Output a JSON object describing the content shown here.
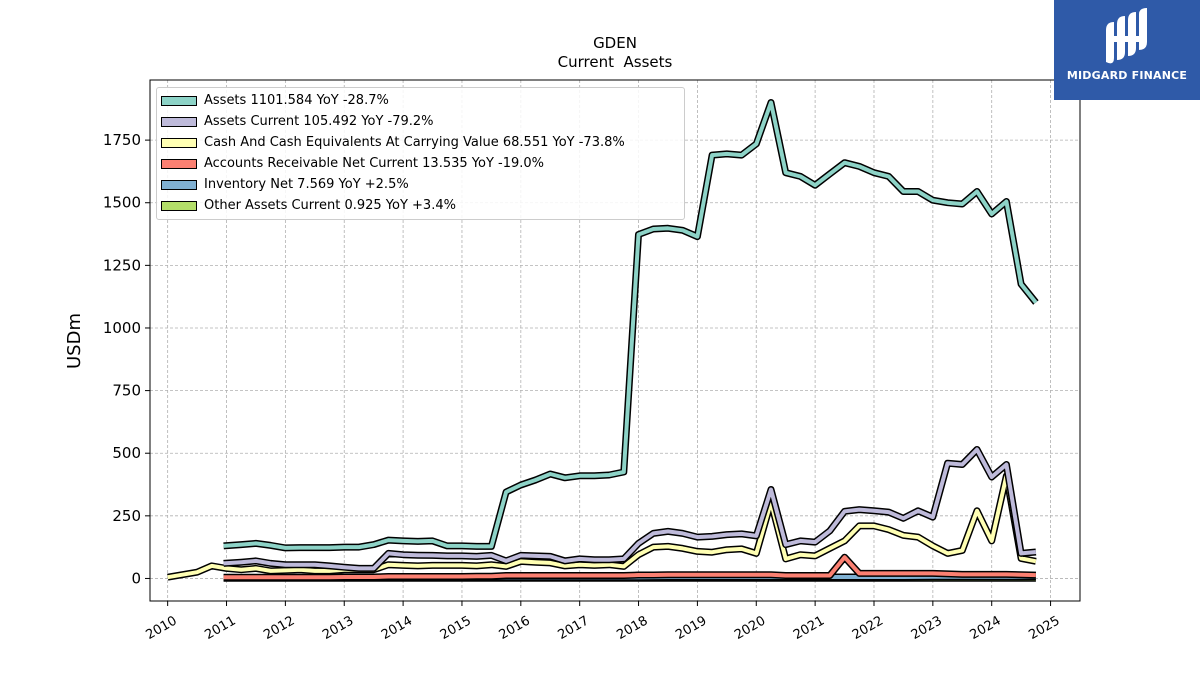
{
  "brand": {
    "name": "MIDGARD FINANCE",
    "color": "#2f5aa8"
  },
  "chart_data": {
    "type": "line",
    "title": "GDEN",
    "subtitle": "Current  Assets",
    "ylabel": "USDm",
    "xlabel": "",
    "xlim": [
      2009.7,
      2025.5
    ],
    "ylim": [
      -90,
      1990
    ],
    "yticks": [
      0,
      250,
      500,
      750,
      1000,
      1250,
      1500,
      1750
    ],
    "xticks": [
      2010,
      2011,
      2012,
      2013,
      2014,
      2015,
      2016,
      2017,
      2018,
      2019,
      2020,
      2021,
      2022,
      2023,
      2024,
      2025
    ],
    "grid": true,
    "legend_position": "top-left",
    "series": [
      {
        "name": "Assets",
        "legend": "Assets  1101.584 YoY -28.7%",
        "color": "#8dd3c7",
        "points": [
          [
            2010.95,
            130
          ],
          [
            2011.25,
            135
          ],
          [
            2011.5,
            140
          ],
          [
            2011.75,
            132
          ],
          [
            2012.0,
            122
          ],
          [
            2012.25,
            123
          ],
          [
            2012.5,
            123
          ],
          [
            2012.75,
            123
          ],
          [
            2013.0,
            125
          ],
          [
            2013.25,
            125
          ],
          [
            2013.5,
            135
          ],
          [
            2013.75,
            153
          ],
          [
            2014.0,
            150
          ],
          [
            2014.25,
            148
          ],
          [
            2014.5,
            150
          ],
          [
            2014.75,
            130
          ],
          [
            2015.0,
            130
          ],
          [
            2015.25,
            128
          ],
          [
            2015.5,
            128
          ],
          [
            2015.75,
            345
          ],
          [
            2016.0,
            373
          ],
          [
            2016.25,
            393
          ],
          [
            2016.5,
            417
          ],
          [
            2016.75,
            402
          ],
          [
            2017.0,
            410
          ],
          [
            2017.25,
            410
          ],
          [
            2017.5,
            413
          ],
          [
            2017.75,
            425
          ],
          [
            2018.0,
            1373
          ],
          [
            2018.25,
            1395
          ],
          [
            2018.5,
            1398
          ],
          [
            2018.75,
            1390
          ],
          [
            2019.0,
            1365
          ],
          [
            2019.25,
            1690
          ],
          [
            2019.5,
            1695
          ],
          [
            2019.75,
            1690
          ],
          [
            2020.0,
            1735
          ],
          [
            2020.25,
            1900
          ],
          [
            2020.5,
            1620
          ],
          [
            2020.75,
            1605
          ],
          [
            2021.0,
            1570
          ],
          [
            2021.25,
            1615
          ],
          [
            2021.5,
            1660
          ],
          [
            2021.75,
            1645
          ],
          [
            2022.0,
            1620
          ],
          [
            2022.25,
            1605
          ],
          [
            2022.5,
            1545
          ],
          [
            2022.75,
            1545
          ],
          [
            2023.0,
            1510
          ],
          [
            2023.25,
            1500
          ],
          [
            2023.5,
            1495
          ],
          [
            2023.75,
            1545
          ],
          [
            2024.0,
            1455
          ],
          [
            2024.25,
            1505
          ],
          [
            2024.5,
            1175
          ],
          [
            2024.75,
            1101.584
          ]
        ]
      },
      {
        "name": "Assets Current",
        "legend": "Assets Current  105.492 YoY -79.2%",
        "color": "#bebada",
        "points": [
          [
            2010.95,
            60
          ],
          [
            2011.25,
            65
          ],
          [
            2011.5,
            70
          ],
          [
            2011.75,
            60
          ],
          [
            2012.0,
            55
          ],
          [
            2012.25,
            55
          ],
          [
            2012.5,
            55
          ],
          [
            2012.75,
            50
          ],
          [
            2013.0,
            45
          ],
          [
            2013.25,
            40
          ],
          [
            2013.5,
            40
          ],
          [
            2013.75,
            100
          ],
          [
            2014.0,
            95
          ],
          [
            2014.25,
            93
          ],
          [
            2014.5,
            92
          ],
          [
            2014.75,
            90
          ],
          [
            2015.0,
            90
          ],
          [
            2015.25,
            88
          ],
          [
            2015.5,
            92
          ],
          [
            2015.75,
            70
          ],
          [
            2016.0,
            92
          ],
          [
            2016.25,
            90
          ],
          [
            2016.5,
            88
          ],
          [
            2016.75,
            70
          ],
          [
            2017.0,
            78
          ],
          [
            2017.25,
            75
          ],
          [
            2017.5,
            75
          ],
          [
            2017.75,
            78
          ],
          [
            2018.0,
            140
          ],
          [
            2018.25,
            180
          ],
          [
            2018.5,
            188
          ],
          [
            2018.75,
            180
          ],
          [
            2019.0,
            165
          ],
          [
            2019.25,
            168
          ],
          [
            2019.5,
            175
          ],
          [
            2019.75,
            178
          ],
          [
            2020.0,
            170
          ],
          [
            2020.25,
            355
          ],
          [
            2020.5,
            135
          ],
          [
            2020.75,
            150
          ],
          [
            2021.0,
            145
          ],
          [
            2021.25,
            190
          ],
          [
            2021.5,
            268
          ],
          [
            2021.75,
            275
          ],
          [
            2022.0,
            270
          ],
          [
            2022.25,
            265
          ],
          [
            2022.5,
            240
          ],
          [
            2022.75,
            270
          ],
          [
            2023.0,
            245
          ],
          [
            2023.25,
            460
          ],
          [
            2023.5,
            455
          ],
          [
            2023.75,
            515
          ],
          [
            2024.0,
            405
          ],
          [
            2024.25,
            455
          ],
          [
            2024.5,
            100
          ],
          [
            2024.75,
            105.492
          ]
        ]
      },
      {
        "name": "Cash And Cash Equivalents At Carrying Value",
        "legend": "Cash And Cash Equivalents At Carrying Value  68.551 YoY -73.8%",
        "color": "#ffffb3",
        "points": [
          [
            2010.0,
            5
          ],
          [
            2010.25,
            15
          ],
          [
            2010.5,
            25
          ],
          [
            2010.75,
            50
          ],
          [
            2011.0,
            40
          ],
          [
            2011.25,
            35
          ],
          [
            2011.5,
            40
          ],
          [
            2011.75,
            30
          ],
          [
            2012.0,
            32
          ],
          [
            2012.25,
            35
          ],
          [
            2012.5,
            30
          ],
          [
            2012.75,
            30
          ],
          [
            2013.0,
            35
          ],
          [
            2013.25,
            35
          ],
          [
            2013.5,
            35
          ],
          [
            2013.75,
            55
          ],
          [
            2014.0,
            52
          ],
          [
            2014.25,
            50
          ],
          [
            2014.5,
            52
          ],
          [
            2014.75,
            52
          ],
          [
            2015.0,
            52
          ],
          [
            2015.25,
            50
          ],
          [
            2015.5,
            55
          ],
          [
            2015.75,
            48
          ],
          [
            2016.0,
            68
          ],
          [
            2016.25,
            65
          ],
          [
            2016.5,
            62
          ],
          [
            2016.75,
            50
          ],
          [
            2017.0,
            55
          ],
          [
            2017.25,
            52
          ],
          [
            2017.5,
            55
          ],
          [
            2017.75,
            48
          ],
          [
            2018.0,
            95
          ],
          [
            2018.25,
            125
          ],
          [
            2018.5,
            128
          ],
          [
            2018.75,
            120
          ],
          [
            2019.0,
            108
          ],
          [
            2019.25,
            105
          ],
          [
            2019.5,
            115
          ],
          [
            2019.75,
            118
          ],
          [
            2020.0,
            100
          ],
          [
            2020.25,
            305
          ],
          [
            2020.5,
            78
          ],
          [
            2020.75,
            95
          ],
          [
            2021.0,
            90
          ],
          [
            2021.25,
            120
          ],
          [
            2021.5,
            150
          ],
          [
            2021.75,
            210
          ],
          [
            2022.0,
            210
          ],
          [
            2022.25,
            195
          ],
          [
            2022.5,
            172
          ],
          [
            2022.75,
            165
          ],
          [
            2023.0,
            130
          ],
          [
            2023.25,
            100
          ],
          [
            2023.5,
            112
          ],
          [
            2023.75,
            270
          ],
          [
            2024.0,
            150
          ],
          [
            2024.25,
            410
          ],
          [
            2024.5,
            80
          ],
          [
            2024.75,
            68.551
          ]
        ]
      },
      {
        "name": "Accounts Receivable Net Current",
        "legend": "Accounts Receivable Net Current  13.535 YoY -19.0%",
        "color": "#fb8072",
        "points": [
          [
            2010.95,
            5
          ],
          [
            2011.25,
            5
          ],
          [
            2011.5,
            5
          ],
          [
            2011.75,
            5
          ],
          [
            2012.0,
            5
          ],
          [
            2012.25,
            5
          ],
          [
            2012.5,
            5
          ],
          [
            2012.75,
            5
          ],
          [
            2013.0,
            6
          ],
          [
            2013.25,
            6
          ],
          [
            2013.5,
            6
          ],
          [
            2013.75,
            8
          ],
          [
            2014.0,
            8
          ],
          [
            2014.25,
            8
          ],
          [
            2014.5,
            8
          ],
          [
            2014.75,
            8
          ],
          [
            2015.0,
            8
          ],
          [
            2015.25,
            9
          ],
          [
            2015.5,
            9
          ],
          [
            2015.75,
            12
          ],
          [
            2016.0,
            12
          ],
          [
            2016.25,
            12
          ],
          [
            2016.5,
            12
          ],
          [
            2016.75,
            12
          ],
          [
            2017.0,
            12
          ],
          [
            2017.25,
            12
          ],
          [
            2017.5,
            12
          ],
          [
            2017.75,
            12
          ],
          [
            2018.0,
            14
          ],
          [
            2018.25,
            14
          ],
          [
            2018.5,
            15
          ],
          [
            2018.75,
            15
          ],
          [
            2019.0,
            15
          ],
          [
            2019.25,
            15
          ],
          [
            2019.5,
            15
          ],
          [
            2019.75,
            15
          ],
          [
            2020.0,
            15
          ],
          [
            2020.25,
            15
          ],
          [
            2020.5,
            12
          ],
          [
            2020.75,
            12
          ],
          [
            2021.0,
            12
          ],
          [
            2021.25,
            12
          ],
          [
            2021.5,
            85
          ],
          [
            2021.75,
            20
          ],
          [
            2022.0,
            20
          ],
          [
            2022.25,
            20
          ],
          [
            2022.5,
            20
          ],
          [
            2022.75,
            20
          ],
          [
            2023.0,
            20
          ],
          [
            2023.25,
            18
          ],
          [
            2023.5,
            16
          ],
          [
            2023.75,
            16
          ],
          [
            2024.0,
            16
          ],
          [
            2024.25,
            16
          ],
          [
            2024.5,
            15
          ],
          [
            2024.75,
            13.535
          ]
        ]
      },
      {
        "name": "Inventory Net",
        "legend": "Inventory Net  7.569 YoY +2.5%",
        "color": "#80b1d3",
        "points": [
          [
            2010.95,
            3
          ],
          [
            2011.5,
            3
          ],
          [
            2012.0,
            3
          ],
          [
            2012.5,
            3
          ],
          [
            2013.0,
            3
          ],
          [
            2013.5,
            4
          ],
          [
            2014.0,
            4
          ],
          [
            2014.5,
            4
          ],
          [
            2015.0,
            4
          ],
          [
            2015.5,
            5
          ],
          [
            2016.0,
            5
          ],
          [
            2016.5,
            5
          ],
          [
            2017.0,
            5
          ],
          [
            2017.5,
            5
          ],
          [
            2018.0,
            5
          ],
          [
            2018.5,
            6
          ],
          [
            2019.0,
            6
          ],
          [
            2019.5,
            6
          ],
          [
            2020.0,
            6
          ],
          [
            2020.5,
            6
          ],
          [
            2021.0,
            6
          ],
          [
            2021.5,
            6
          ],
          [
            2022.0,
            6
          ],
          [
            2022.5,
            6
          ],
          [
            2023.0,
            7
          ],
          [
            2023.5,
            7
          ],
          [
            2024.0,
            7
          ],
          [
            2024.5,
            7
          ],
          [
            2024.75,
            7.569
          ]
        ]
      },
      {
        "name": "Other Assets Current",
        "legend": "Other Assets Current  0.925 YoY +3.4%",
        "color": "#b3de69",
        "points": [
          [
            2010.95,
            1
          ],
          [
            2011.5,
            1
          ],
          [
            2012.0,
            1
          ],
          [
            2012.5,
            1
          ],
          [
            2013.0,
            1
          ],
          [
            2013.5,
            1
          ],
          [
            2014.0,
            1
          ],
          [
            2014.5,
            1
          ],
          [
            2015.0,
            1
          ],
          [
            2015.5,
            1
          ],
          [
            2016.0,
            1
          ],
          [
            2016.5,
            1
          ],
          [
            2017.0,
            1
          ],
          [
            2017.5,
            1
          ],
          [
            2018.0,
            1
          ],
          [
            2018.5,
            1
          ],
          [
            2019.0,
            1
          ],
          [
            2019.5,
            1
          ],
          [
            2020.0,
            1
          ],
          [
            2020.5,
            1
          ],
          [
            2021.0,
            1
          ],
          [
            2021.5,
            1
          ],
          [
            2022.0,
            1
          ],
          [
            2022.5,
            1
          ],
          [
            2023.0,
            1
          ],
          [
            2023.5,
            1
          ],
          [
            2024.0,
            1
          ],
          [
            2024.5,
            1
          ],
          [
            2024.75,
            0.925
          ]
        ]
      }
    ]
  }
}
